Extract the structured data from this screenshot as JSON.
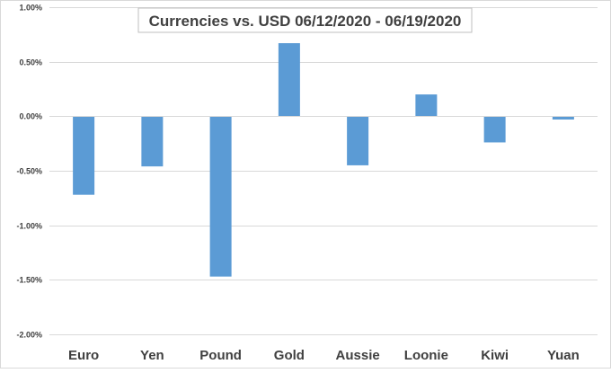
{
  "chart_data": {
    "type": "bar",
    "title": "Currencies vs. USD 06/12/2020 - 06/19/2020",
    "categories": [
      "Euro",
      "Yen",
      "Pound",
      "Gold",
      "Aussie",
      "Loonie",
      "Kiwi",
      "Yuan"
    ],
    "values": [
      -0.72,
      -0.46,
      -1.47,
      0.67,
      -0.45,
      0.2,
      -0.24,
      -0.03
    ],
    "value_unit": "%",
    "ylim": [
      -2.0,
      1.0
    ],
    "yticks": [
      1.0,
      0.5,
      0.0,
      -0.5,
      -1.0,
      -1.5,
      -2.0
    ],
    "ytick_labels": [
      "1.00%",
      "0.50%",
      "0.00%",
      "-0.50%",
      "-1.00%",
      "-1.50%",
      "-2.00%"
    ],
    "grid": true,
    "legend": "none",
    "bar_color": "#5b9bd5"
  }
}
